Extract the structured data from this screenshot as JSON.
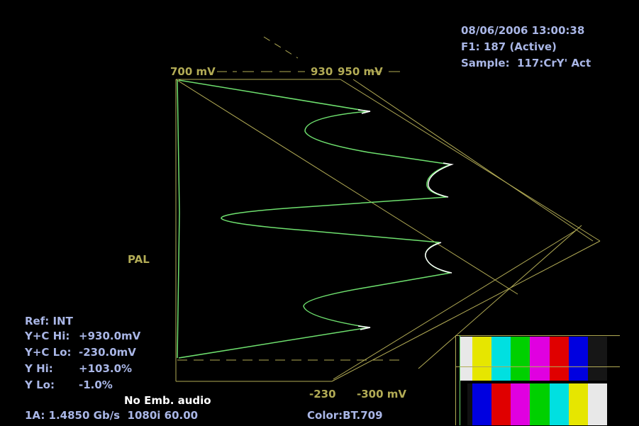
{
  "status": {
    "datetime": "08/06/2006 13:00:38",
    "field": "F1: 187 (Active)",
    "sample": "Sample:  117:CrY' Act"
  },
  "scale": {
    "label_700": "700 mV",
    "label_930": "930",
    "label_950": "950 mV",
    "label_m230": "-230",
    "label_m300": "-300 mV",
    "pal": "PAL"
  },
  "limits": {
    "ref": "Ref: INT",
    "yc_hi_label": "Y+C Hi:",
    "yc_hi_value": "+930.0mV",
    "yc_lo_label": "Y+C Lo:",
    "yc_lo_value": "-230.0mV",
    "y_hi_label": "Y Hi:",
    "y_hi_value": "+103.0%",
    "y_lo_label": "Y Lo:",
    "y_lo_value": "-1.0%"
  },
  "bottom": {
    "audio": "No Emb. audio",
    "input": "1A: 1.4850 Gb/s  1080i 60.00",
    "color": "Color:BT.709"
  },
  "colors": {
    "trace": "#6ee06e",
    "graticule": "#b2ab55",
    "text": "#a9b6e6"
  },
  "thumbnail": {
    "top_row": [
      "#e8e8e8",
      "#e6e600",
      "#00e0e0",
      "#00d000",
      "#e000e0",
      "#e00000",
      "#0000e0",
      "#101010"
    ],
    "bottom_row": [
      "#0000e0",
      "#101010",
      "#e000e0",
      "#101010",
      "#00e0e0",
      "#101010",
      "#e8e8e8"
    ]
  }
}
